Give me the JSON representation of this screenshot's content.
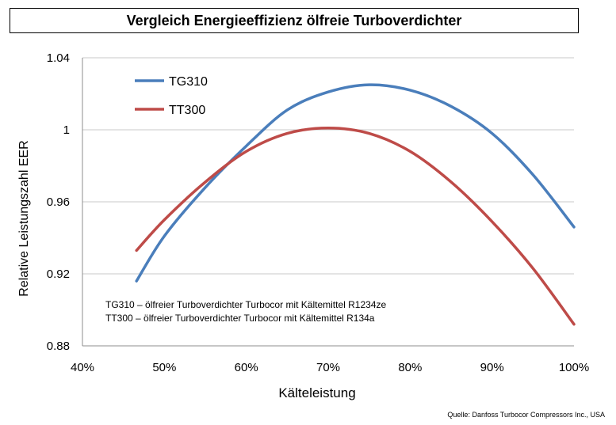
{
  "title": "Vergleich Energieeffizienz ölfreie Turboverdichter",
  "source": "Quelle:  Danfoss Turbocor Compressors  Inc., USA",
  "note_lines": [
    "TG310 – ölfreier Turboverdichter Turbocor mit Kältemittel R1234ze",
    "TT300 – ölfreier Turboverdichter Turbocor mit Kältemittel R134a"
  ],
  "chart_data": {
    "type": "line",
    "title": "Vergleich Energieeffizienz ölfreie Turboverdichter",
    "xlabel": "Kälteleistung",
    "ylabel": "Relative Leistungszahl EER",
    "xlim": [
      40,
      100
    ],
    "ylim": [
      0.88,
      1.04
    ],
    "x_ticks": [
      40,
      50,
      60,
      70,
      80,
      90,
      100
    ],
    "x_tick_labels": [
      "40%",
      "50%",
      "60%",
      "70%",
      "80%",
      "90%",
      "100%"
    ],
    "y_ticks": [
      0.88,
      0.92,
      0.96,
      1.0,
      1.04
    ],
    "y_tick_labels": [
      "0.88",
      "0.92",
      "0.96",
      "1",
      "1.04"
    ],
    "grid": "horizontal",
    "legend_position": "top-left",
    "series": [
      {
        "name": "TG310",
        "color": "#4A7EBB",
        "x": [
          46.6,
          50,
          55,
          60,
          65,
          70,
          75,
          80,
          85,
          90,
          95,
          100
        ],
        "y": [
          0.916,
          0.941,
          0.968,
          0.991,
          1.011,
          1.021,
          1.025,
          1.022,
          1.013,
          0.998,
          0.975,
          0.946
        ]
      },
      {
        "name": "TT300",
        "color": "#BE4B48",
        "x": [
          46.6,
          50,
          55,
          60,
          65,
          70,
          75,
          80,
          85,
          90,
          95,
          100
        ],
        "y": [
          0.933,
          0.95,
          0.971,
          0.988,
          0.998,
          1.001,
          0.998,
          0.988,
          0.971,
          0.949,
          0.923,
          0.892
        ]
      }
    ]
  }
}
